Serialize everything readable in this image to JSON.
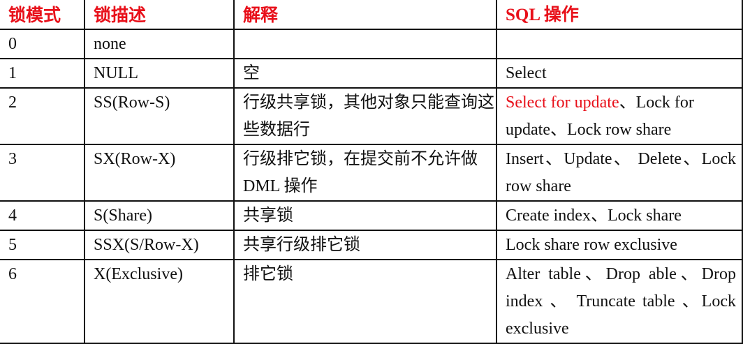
{
  "header": {
    "mode": "锁模式",
    "desc": "锁描述",
    "explain": "解释",
    "sql": "SQL 操作"
  },
  "colors": {
    "header_text": "#e8101a",
    "highlight": "#e8101a",
    "border": "#111111"
  },
  "rows": [
    {
      "mode": "0",
      "desc": "none",
      "explain": "",
      "sql": ""
    },
    {
      "mode": "1",
      "desc": "NULL",
      "explain": "空",
      "sql": "Select"
    },
    {
      "mode": "2",
      "desc": "SS(Row-S)",
      "explain": "行级共享锁，其他对象只能查询这些数据行",
      "sql_highlight": "Select for update",
      "sql": "、Lock for update、Lock row share"
    },
    {
      "mode": "3",
      "desc": "SX(Row-X)",
      "explain": "行级排它锁，在提交前不允许做 DML 操作",
      "sql": "Insert、Update、 Delete、Lock row share"
    },
    {
      "mode": "4",
      "desc": "S(Share)",
      "explain": "共享锁",
      "sql": "Create index、Lock share"
    },
    {
      "mode": "5",
      "desc": "SSX(S/Row-X)",
      "explain": "共享行级排它锁",
      "sql": "Lock share row exclusive"
    },
    {
      "mode": "6",
      "desc": "X(Exclusive)",
      "explain": "排它锁",
      "sql": "Alter table、Drop able、Drop index 、 Truncate table 、Lock exclusive"
    }
  ]
}
